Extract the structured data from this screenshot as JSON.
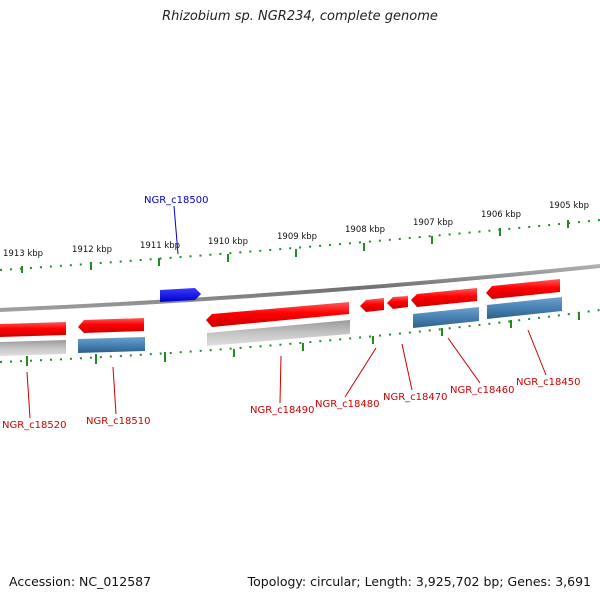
{
  "title": "Rhizobium sp. NGR234, complete genome",
  "accession": "Accession: NC_012587",
  "summary": "Topology: circular; Length: 3,925,702 bp; Genes: 3,691",
  "colors": {
    "forward_gene": "#ff0000",
    "reverse_protein": "#4682b4",
    "pseudo": "#bbbbbb",
    "highlight_gene": "#0000ff",
    "tick": "#228b22",
    "backbone": "#808080"
  },
  "scale_labels": [
    "1913 kbp",
    "1912 kbp",
    "1911 kbp",
    "1910 kbp",
    "1909 kbp",
    "1908 kbp",
    "1907 kbp",
    "1906 kbp",
    "1905 kbp"
  ],
  "genes": [
    {
      "id": "NGR_c18520",
      "color": "#cc0000"
    },
    {
      "id": "NGR_c18510",
      "color": "#cc0000"
    },
    {
      "id": "NGR_c18500",
      "color": "#0000cc"
    },
    {
      "id": "NGR_c18490",
      "color": "#cc0000"
    },
    {
      "id": "NGR_c18480",
      "color": "#cc0000"
    },
    {
      "id": "NGR_c18470",
      "color": "#cc0000"
    },
    {
      "id": "NGR_c18460",
      "color": "#cc0000"
    },
    {
      "id": "NGR_c18450",
      "color": "#cc0000"
    }
  ]
}
